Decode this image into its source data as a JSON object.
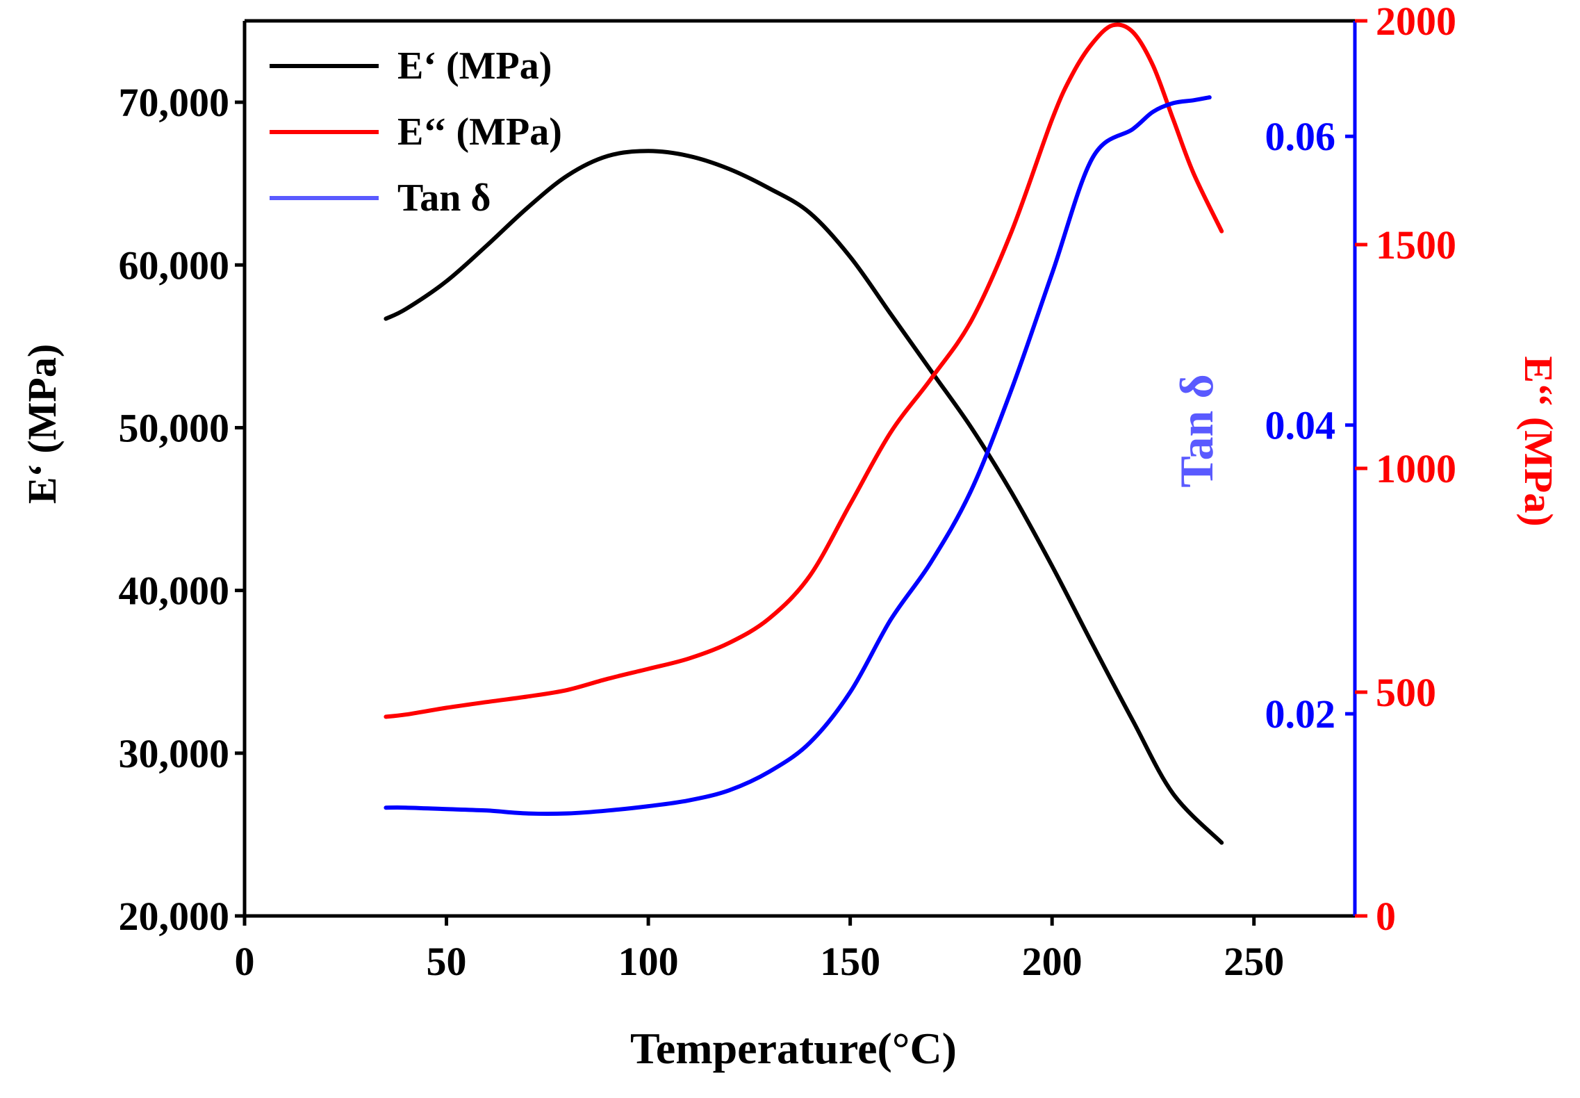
{
  "chart_data": {
    "type": "line",
    "title": "",
    "xlabel": "Temperature(°C)",
    "xlim": [
      0,
      275
    ],
    "x_ticks": [
      0,
      50,
      100,
      150,
      200,
      250
    ],
    "x_tick_labels": [
      "0",
      "50",
      "100",
      "150",
      "200",
      "250"
    ],
    "y_left": {
      "label": "E‘ (MPa)",
      "lim": [
        20000,
        75000
      ],
      "ticks": [
        20000,
        30000,
        40000,
        50000,
        60000,
        70000
      ],
      "tick_labels": [
        "20,000",
        "30,000",
        "40,000",
        "50,000",
        "60,000",
        "70,000"
      ],
      "color": "#000000"
    },
    "y_right_tan": {
      "label": "Tan δ",
      "lim": [
        0.006,
        0.068
      ],
      "ticks": [
        0.02,
        0.04,
        0.06
      ],
      "tick_labels": [
        "0.02",
        "0.04",
        "0.06"
      ],
      "color": "#0000ff"
    },
    "y_right_loss": {
      "label": "E‘‘ (MPa)",
      "lim": [
        0,
        2000
      ],
      "ticks": [
        0,
        500,
        1000,
        1500,
        2000
      ],
      "tick_labels": [
        "0",
        "500",
        "1000",
        "1500",
        "2000"
      ],
      "color": "#ff0000"
    },
    "legend": {
      "position": "top-left",
      "entries": [
        {
          "label": "E‘ (MPa)",
          "color": "#000000"
        },
        {
          "label": "E‘‘ (MPa)",
          "color": "#ff0000"
        },
        {
          "label": "Tan δ",
          "color": "#0000ff"
        }
      ]
    },
    "series": [
      {
        "name": "E‘ (MPa)",
        "axis": "y_left",
        "color": "#000000",
        "x": [
          35,
          40,
          50,
          60,
          70,
          80,
          90,
          100,
          110,
          120,
          130,
          140,
          150,
          160,
          170,
          180,
          190,
          200,
          210,
          220,
          230,
          242
        ],
        "y": [
          56700,
          57300,
          59000,
          61200,
          63500,
          65500,
          66700,
          67000,
          66700,
          65900,
          64700,
          63200,
          60500,
          57000,
          53500,
          50000,
          46000,
          41500,
          36700,
          32000,
          27500,
          24500
        ]
      },
      {
        "name": "E‘‘ (MPa)",
        "axis": "y_right_loss",
        "color": "#ff0000",
        "x": [
          35,
          40,
          50,
          60,
          70,
          80,
          90,
          100,
          110,
          120,
          130,
          140,
          150,
          160,
          170,
          180,
          190,
          200,
          205,
          210,
          215,
          220,
          225,
          230,
          235,
          242
        ],
        "y": [
          445,
          450,
          465,
          478,
          490,
          505,
          530,
          552,
          575,
          610,
          665,
          760,
          920,
          1080,
          1200,
          1330,
          1530,
          1780,
          1880,
          1950,
          1990,
          1975,
          1900,
          1780,
          1660,
          1530
        ]
      },
      {
        "name": "Tan δ",
        "axis": "y_right_tan",
        "color": "#0000ff",
        "x": [
          35,
          40,
          50,
          60,
          70,
          80,
          90,
          100,
          110,
          120,
          130,
          140,
          150,
          160,
          170,
          180,
          190,
          200,
          210,
          220,
          225,
          230,
          235,
          239
        ],
        "y": [
          0.0135,
          0.0135,
          0.0134,
          0.0133,
          0.0131,
          0.0131,
          0.0133,
          0.0136,
          0.014,
          0.0147,
          0.016,
          0.018,
          0.0215,
          0.0265,
          0.0305,
          0.0355,
          0.0425,
          0.0505,
          0.0585,
          0.0605,
          0.0617,
          0.0623,
          0.0625,
          0.0627
        ]
      }
    ]
  }
}
